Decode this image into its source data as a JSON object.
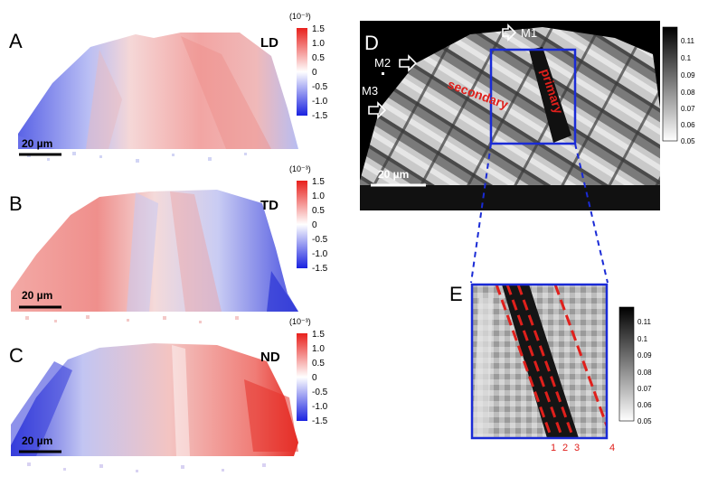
{
  "figure": {
    "panels": [
      {
        "letter": "A",
        "label": "LD",
        "scale_bar": "20 µm"
      },
      {
        "letter": "B",
        "label": "TD",
        "scale_bar": "20 µm"
      },
      {
        "letter": "C",
        "label": "ND",
        "scale_bar": "20 µm"
      }
    ],
    "strain_colorbar": {
      "unit": "(10⁻³)",
      "ticks": [
        "1.5",
        "1.0",
        "0.5",
        "0",
        "-0.5",
        "-1.0",
        "-1.5"
      ],
      "colors": {
        "high": "#e8201c",
        "mid": "#ffffff",
        "low": "#1a22e0"
      }
    },
    "panel_d": {
      "letter": "D",
      "scale_bar": "20 µm",
      "markers": [
        "M1",
        "M2",
        "M3"
      ],
      "annotations": {
        "primary": "primary",
        "secondary": "secondary"
      },
      "colorbar_ticks": [
        "0.11",
        "0.1",
        "0.09",
        "0.08",
        "0.07",
        "0.06",
        "0.05"
      ]
    },
    "panel_e": {
      "letter": "E",
      "line_numbers": [
        "1",
        "2",
        "3",
        "4"
      ],
      "colorbar_ticks": [
        "0.11",
        "0.1",
        "0.09",
        "0.08",
        "0.07",
        "0.06",
        "0.05"
      ]
    },
    "colors": {
      "annotation_red": "#e0201c",
      "frame_blue": "#1a2bd6"
    }
  }
}
